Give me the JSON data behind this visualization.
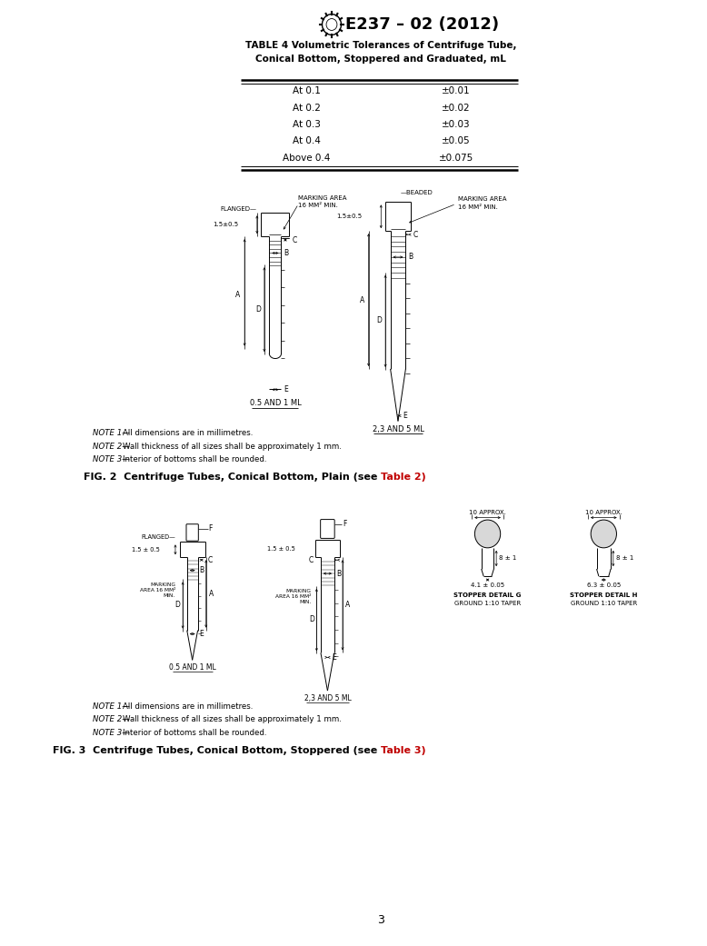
{
  "page_width": 7.78,
  "page_height": 10.41,
  "dpi": 100,
  "background": "#ffffff",
  "header_title": "E237 – 02 (2012)",
  "table_title_line1": "TABLE 4 Volumetric Tolerances of Centrifuge Tube,",
  "table_title_line2": "Conical Bottom, Stoppered and Graduated, mL",
  "table_rows": [
    [
      "At 0.1",
      "±0.01"
    ],
    [
      "At 0.2",
      "±0.02"
    ],
    [
      "At 0.3",
      "±0.03"
    ],
    [
      "At 0.4",
      "±0.05"
    ],
    [
      "Above 0.4",
      "±0.075"
    ]
  ],
  "fig2_notes": [
    "NOTE 1—All dimensions are in millimetres.",
    "NOTE 2—Wall thickness of all sizes shall be approximately 1 mm.",
    "NOTE 3—Interior of bottoms shall be rounded."
  ],
  "fig2_caption": "FIG. 2  Centrifuge Tubes, Conical Bottom, Plain (see Table 2)",
  "fig2_caption_table": "Table 2",
  "fig3_notes": [
    "NOTE 1—All dimensions are in millimetres.",
    "NOTE 2—Wall thickness of all sizes shall be approximately 1 mm.",
    "NOTE 3—Interior of bottoms shall be rounded."
  ],
  "fig3_caption": "FIG. 3  Centrifuge Tubes, Conical Bottom, Stoppered (see Table 3)",
  "fig3_caption_table": "Table 3",
  "page_number": "3",
  "text_color": "#000000",
  "line_color": "#000000",
  "red_color": "#c00000"
}
